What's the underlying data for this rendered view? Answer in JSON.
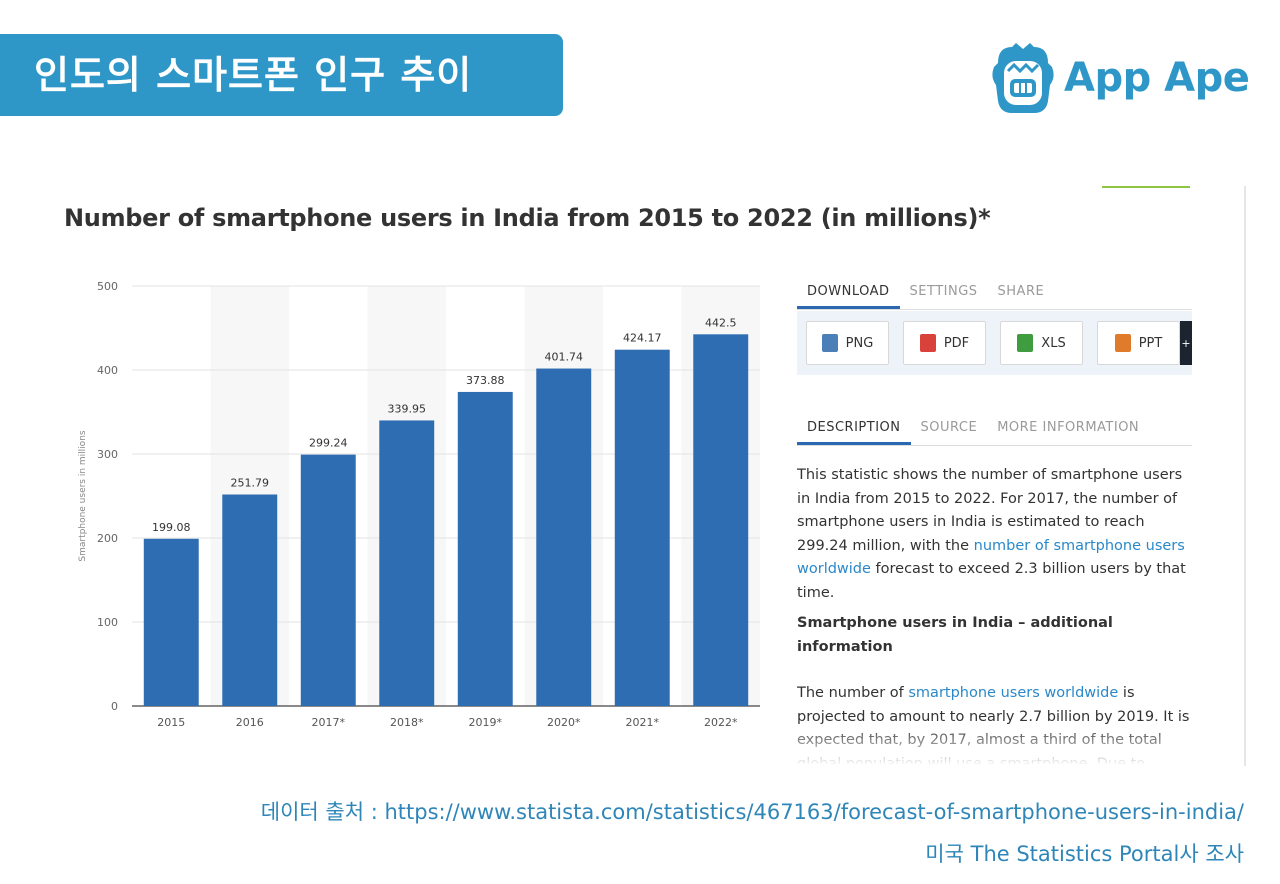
{
  "header": {
    "title": "인도의 스마트폰 인구 추이"
  },
  "brand": {
    "name": "App Ape",
    "color": "#2e97c7"
  },
  "chart_data": {
    "type": "bar",
    "title": "Number of smartphone users in India from 2015 to 2022 (in millions)*",
    "categories": [
      "2015",
      "2016",
      "2017*",
      "2018*",
      "2019*",
      "2020*",
      "2021*",
      "2022*"
    ],
    "values": [
      199.08,
      251.79,
      299.24,
      339.95,
      373.88,
      401.74,
      424.17,
      442.5
    ],
    "value_labels": [
      "199.08",
      "251.79",
      "299.24",
      "339.95",
      "373.88",
      "401.74",
      "424.17",
      "442.5"
    ],
    "ylabel": "Smartphone users in millions",
    "xlabel": "",
    "ylim": [
      0,
      500
    ],
    "yticks": [
      0,
      100,
      200,
      300,
      400,
      500
    ],
    "grid": true,
    "bar_color": "#2f6db3"
  },
  "panel": {
    "tabs": [
      "DOWNLOAD",
      "SETTINGS",
      "SHARE"
    ],
    "downloads": [
      "PNG",
      "PDF",
      "XLS",
      "PPT"
    ],
    "more_label": "+",
    "tabs2": [
      "DESCRIPTION",
      "SOURCE",
      "MORE INFORMATION"
    ],
    "desc_pre": "This statistic shows the number of smartphone users in India from 2015 to 2022. For 2017, the number of smartphone users in India is estimated to reach 299.24 million, with the ",
    "desc_link": "number of smartphone users worldwide",
    "desc_post": " forecast to exceed 2.3 billion users by that time.",
    "subheading": "Smartphone users in India – additional information",
    "desc2_pre": "The number of ",
    "desc2_link": "smartphone users worldwide",
    "desc2_post": " is projected to amount to nearly 2.7 billion by 2019. It is expected that, by 2017, almost a third of the total global population will use a smartphone. Due to"
  },
  "footer": {
    "source": "데이터 출처 : https://www.statista.com/statistics/467163/forecast-of-smartphone-users-in-india/",
    "survey": "미국 The Statistics Portal사 조사"
  }
}
